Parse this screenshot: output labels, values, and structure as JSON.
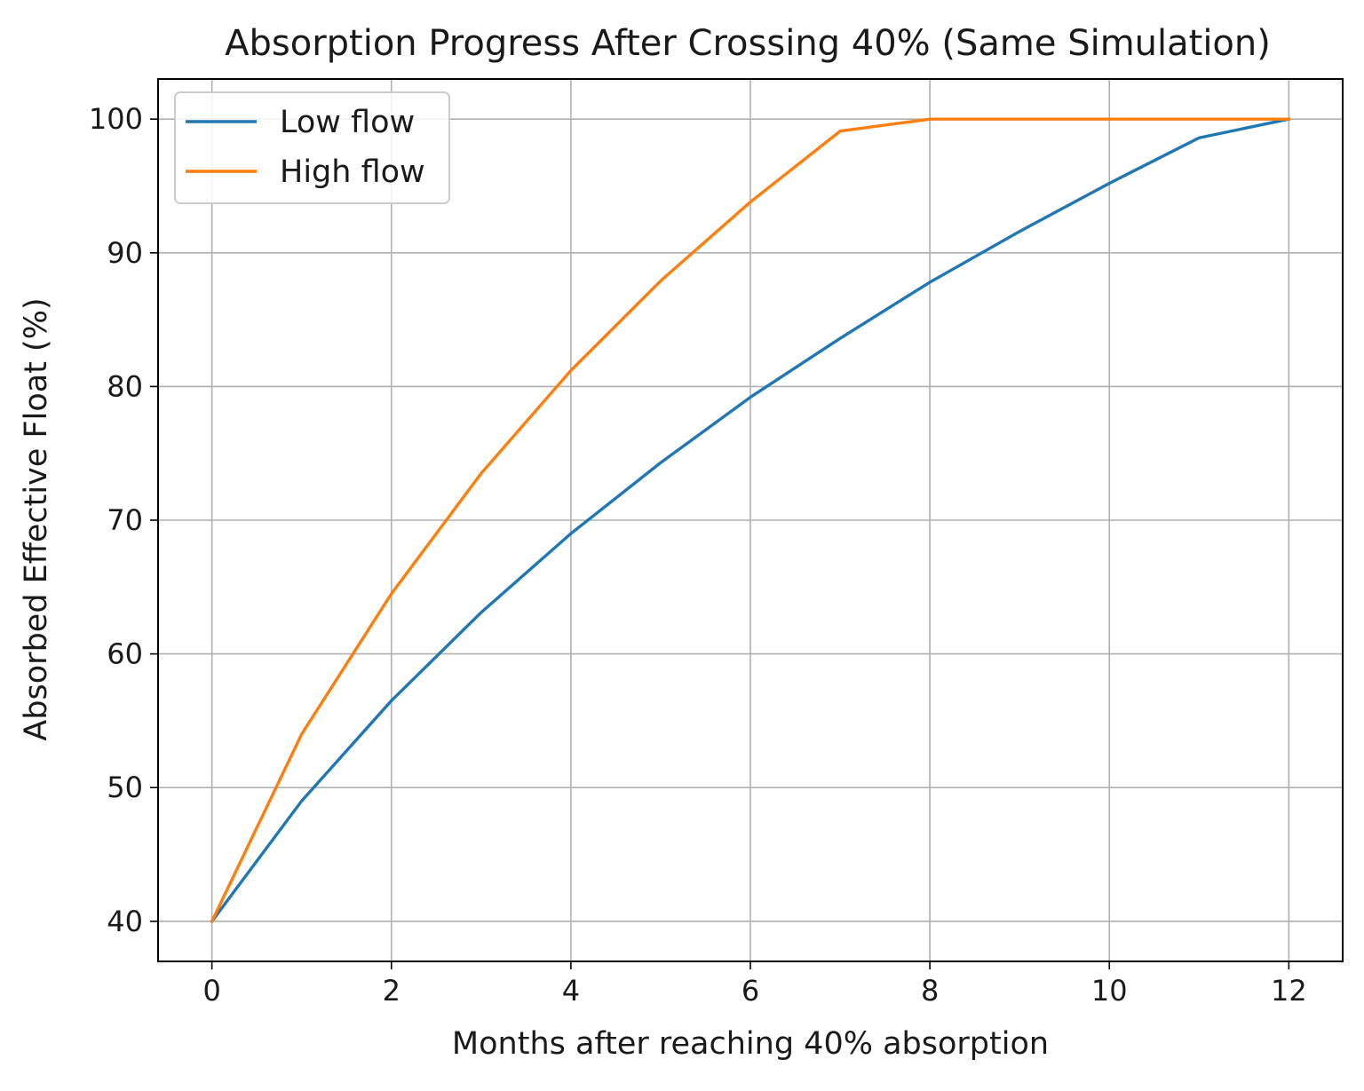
{
  "chart_data": {
    "type": "line",
    "title": "Absorption Progress After Crossing 40% (Same Simulation)",
    "xlabel": "Months after reaching 40% absorption",
    "ylabel": "Absorbed Effective Float (%)",
    "xlim": [
      -0.6,
      12.6
    ],
    "ylim": [
      37,
      103
    ],
    "xticks": [
      0,
      2,
      4,
      6,
      8,
      10,
      12
    ],
    "xtick_labels": [
      "0",
      "2",
      "4",
      "6",
      "8",
      "10",
      "12"
    ],
    "yticks": [
      40,
      50,
      60,
      70,
      80,
      90,
      100
    ],
    "ytick_labels": [
      "40",
      "50",
      "60",
      "70",
      "80",
      "90",
      "100"
    ],
    "grid": true,
    "legend_position": "top-left",
    "x": [
      0,
      1,
      2,
      3,
      4,
      5,
      6,
      7,
      8,
      9,
      10,
      11,
      12
    ],
    "series": [
      {
        "name": "Low flow",
        "color": "#1f77b4",
        "values": [
          40.0,
          49.0,
          56.5,
          63.1,
          69.0,
          74.3,
          79.2,
          83.6,
          87.8,
          91.6,
          95.2,
          98.6,
          100.0
        ]
      },
      {
        "name": "High flow",
        "color": "#ff7f0e",
        "values": [
          40.0,
          54.0,
          64.5,
          73.5,
          81.2,
          87.9,
          93.8,
          99.1,
          100.0,
          100.0,
          100.0,
          100.0,
          100.0
        ]
      }
    ]
  }
}
